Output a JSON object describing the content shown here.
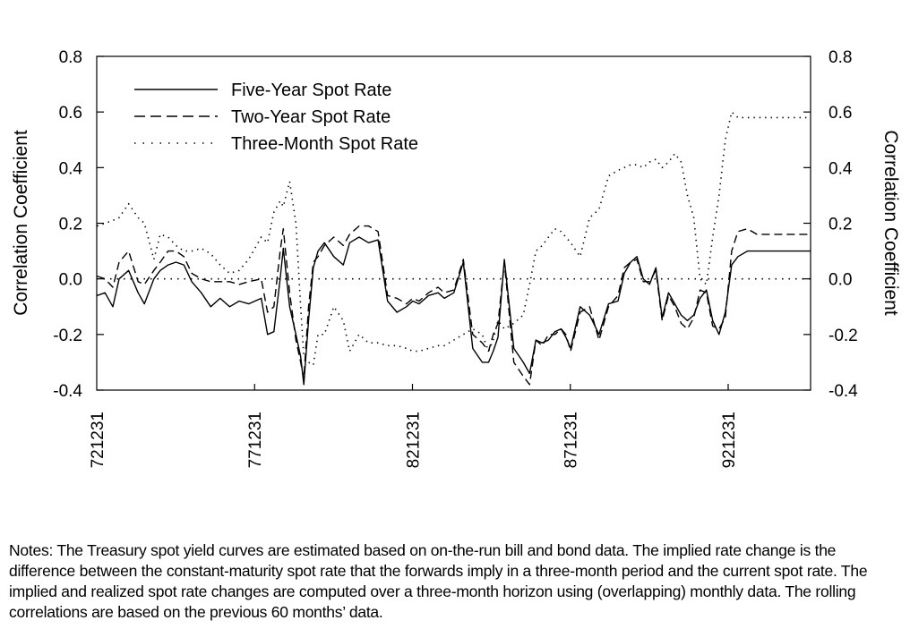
{
  "chart_data": {
    "type": "line",
    "ylabel_left": "Correlation Coefficient",
    "ylabel_right": "Correlation Coefficient",
    "ylim": [
      -0.4,
      0.8
    ],
    "yticks": [
      0.8,
      0.6,
      0.4,
      0.2,
      0.0,
      -0.2,
      -0.4
    ],
    "ytick_labels": [
      "0.8",
      "0.6",
      "0.4",
      "0.2",
      "0.0",
      "-0.2",
      "-0.4"
    ],
    "xlim": [
      1972.99,
      1995.6
    ],
    "xticks": [
      1972.99,
      1977.99,
      1982.99,
      1987.99,
      1992.99
    ],
    "xtick_labels": [
      "721231",
      "771231",
      "821231",
      "871231",
      "921231"
    ],
    "legend_position": "top-left",
    "reference_line": 0.0,
    "series": [
      {
        "name": "Five-Year Spot Rate",
        "style": "solid",
        "x": [
          1973.0,
          1973.25,
          1973.5,
          1973.7,
          1974.0,
          1974.3,
          1974.5,
          1974.8,
          1975.0,
          1975.25,
          1975.5,
          1975.75,
          1976.0,
          1976.3,
          1976.6,
          1976.9,
          1977.2,
          1977.5,
          1977.8,
          1978.2,
          1978.4,
          1978.6,
          1978.8,
          1978.9,
          1979.1,
          1979.3,
          1979.45,
          1979.55,
          1979.7,
          1979.85,
          1980.0,
          1980.2,
          1980.5,
          1980.8,
          1981.0,
          1981.3,
          1981.6,
          1981.9,
          1982.2,
          1982.5,
          1982.8,
          1983.0,
          1983.2,
          1983.5,
          1983.8,
          1984.0,
          1984.3,
          1984.6,
          1984.9,
          1985.2,
          1985.4,
          1985.55,
          1985.7,
          1985.9,
          1986.2,
          1986.5,
          1986.7,
          1986.9,
          1987.1,
          1987.3,
          1987.5,
          1987.7,
          1987.85,
          1988.0,
          1988.3,
          1988.6,
          1988.9,
          1989.2,
          1989.5,
          1989.7,
          1989.9,
          1990.1,
          1990.3,
          1990.5,
          1990.7,
          1990.9,
          1991.1,
          1991.3,
          1991.5,
          1991.7,
          1991.9,
          1992.1,
          1992.3,
          1992.5,
          1992.7,
          1992.9,
          1993.1,
          1993.3,
          1993.6,
          1993.9,
          1994.2,
          1994.4,
          1994.6,
          1994.8,
          1995.0,
          1995.2,
          1995.4,
          1995.6
        ],
        "values": [
          -0.06,
          -0.05,
          -0.1,
          0.0,
          0.03,
          -0.05,
          -0.09,
          0.0,
          0.03,
          0.05,
          0.06,
          0.05,
          -0.01,
          -0.05,
          -0.1,
          -0.07,
          -0.1,
          -0.08,
          -0.09,
          -0.07,
          -0.2,
          -0.19,
          0.0,
          0.11,
          -0.1,
          -0.2,
          -0.28,
          -0.38,
          -0.15,
          0.04,
          0.1,
          0.13,
          0.08,
          0.05,
          0.13,
          0.15,
          0.13,
          0.14,
          -0.08,
          -0.12,
          -0.1,
          -0.08,
          -0.09,
          -0.06,
          -0.05,
          -0.07,
          -0.05,
          0.06,
          -0.25,
          -0.3,
          -0.3,
          -0.26,
          -0.21,
          0.07,
          -0.25,
          -0.3,
          -0.34,
          -0.22,
          -0.23,
          -0.22,
          -0.19,
          -0.18,
          -0.21,
          -0.25,
          -0.1,
          -0.13,
          -0.2,
          -0.09,
          -0.08,
          0.02,
          0.06,
          0.08,
          0.0,
          -0.02,
          0.04,
          -0.14,
          -0.05,
          -0.09,
          -0.13,
          -0.15,
          -0.13,
          -0.07,
          -0.04,
          -0.15,
          -0.2,
          -0.12,
          0.05,
          0.08,
          0.1,
          0.1,
          0.1,
          0.1,
          0.1,
          0.1,
          0.1,
          0.1,
          0.1,
          0.1
        ]
      },
      {
        "name": "Two-Year Spot Rate",
        "style": "dashed",
        "x": [
          1973.0,
          1973.25,
          1973.5,
          1973.7,
          1974.0,
          1974.3,
          1974.5,
          1974.8,
          1975.0,
          1975.25,
          1975.5,
          1975.75,
          1976.0,
          1976.3,
          1976.6,
          1976.9,
          1977.2,
          1977.5,
          1977.8,
          1978.2,
          1978.4,
          1978.6,
          1978.8,
          1978.9,
          1979.1,
          1979.3,
          1979.45,
          1979.55,
          1979.7,
          1979.85,
          1980.0,
          1980.2,
          1980.5,
          1980.8,
          1981.0,
          1981.3,
          1981.6,
          1981.9,
          1982.2,
          1982.5,
          1982.8,
          1983.0,
          1983.2,
          1983.5,
          1983.8,
          1984.0,
          1984.3,
          1984.6,
          1984.9,
          1985.2,
          1985.4,
          1985.55,
          1985.7,
          1985.9,
          1986.2,
          1986.5,
          1986.7,
          1986.9,
          1987.1,
          1987.3,
          1987.5,
          1987.7,
          1987.85,
          1988.0,
          1988.3,
          1988.6,
          1988.9,
          1989.2,
          1989.5,
          1989.7,
          1989.9,
          1990.1,
          1990.3,
          1990.5,
          1990.7,
          1990.9,
          1991.1,
          1991.3,
          1991.5,
          1991.7,
          1991.9,
          1992.1,
          1992.3,
          1992.5,
          1992.7,
          1992.9,
          1993.1,
          1993.3,
          1993.6,
          1993.9,
          1994.2,
          1994.4,
          1994.6,
          1994.8,
          1995.0,
          1995.2,
          1995.4,
          1995.6
        ],
        "values": [
          0.01,
          0.0,
          -0.03,
          0.06,
          0.1,
          -0.01,
          -0.02,
          0.03,
          0.06,
          0.1,
          0.1,
          0.08,
          0.02,
          0.0,
          -0.01,
          -0.01,
          -0.01,
          -0.02,
          -0.01,
          0.0,
          -0.12,
          -0.1,
          0.1,
          0.18,
          -0.05,
          -0.22,
          -0.3,
          -0.36,
          -0.1,
          0.06,
          0.08,
          0.12,
          0.15,
          0.12,
          0.16,
          0.19,
          0.19,
          0.17,
          -0.06,
          -0.07,
          -0.09,
          -0.07,
          -0.08,
          -0.05,
          -0.03,
          -0.05,
          -0.04,
          0.07,
          -0.2,
          -0.23,
          -0.26,
          -0.2,
          -0.16,
          0.06,
          -0.3,
          -0.35,
          -0.38,
          -0.22,
          -0.24,
          -0.2,
          -0.2,
          -0.18,
          -0.2,
          -0.26,
          -0.12,
          -0.1,
          -0.22,
          -0.1,
          -0.06,
          0.04,
          0.06,
          0.07,
          -0.01,
          -0.01,
          0.03,
          -0.15,
          -0.06,
          -0.1,
          -0.16,
          -0.18,
          -0.14,
          -0.04,
          -0.05,
          -0.17,
          -0.18,
          -0.14,
          0.1,
          0.17,
          0.18,
          0.16,
          0.16,
          0.16,
          0.16,
          0.16,
          0.16,
          0.16,
          0.16,
          0.16
        ]
      },
      {
        "name": "Three-Month Spot Rate",
        "style": "dotted",
        "x": [
          1973.0,
          1973.25,
          1973.5,
          1973.7,
          1974.0,
          1974.3,
          1974.5,
          1974.8,
          1975.0,
          1975.25,
          1975.5,
          1975.75,
          1976.0,
          1976.3,
          1976.6,
          1976.9,
          1977.2,
          1977.5,
          1977.8,
          1978.2,
          1978.4,
          1978.6,
          1978.8,
          1978.9,
          1979.1,
          1979.3,
          1979.45,
          1979.55,
          1979.7,
          1979.85,
          1980.0,
          1980.2,
          1980.5,
          1980.8,
          1981.0,
          1981.3,
          1981.6,
          1981.9,
          1982.2,
          1982.5,
          1982.8,
          1983.0,
          1983.2,
          1983.5,
          1983.8,
          1984.0,
          1984.3,
          1984.6,
          1984.9,
          1985.2,
          1985.4,
          1985.55,
          1985.7,
          1985.9,
          1986.2,
          1986.5,
          1986.7,
          1986.9,
          1987.1,
          1987.3,
          1987.5,
          1987.7,
          1987.85,
          1988.0,
          1988.3,
          1988.6,
          1988.9,
          1989.2,
          1989.5,
          1989.7,
          1989.9,
          1990.1,
          1990.3,
          1990.5,
          1990.7,
          1990.9,
          1991.1,
          1991.3,
          1991.5,
          1991.7,
          1991.9,
          1992.1,
          1992.3,
          1992.5,
          1992.7,
          1992.9,
          1993.1,
          1993.3,
          1993.6,
          1993.9,
          1994.2,
          1994.4,
          1994.6,
          1994.8,
          1995.0,
          1995.2,
          1995.4,
          1995.6
        ],
        "values": [
          0.19,
          0.2,
          0.21,
          0.22,
          0.27,
          0.22,
          0.2,
          0.07,
          0.16,
          0.15,
          0.12,
          0.1,
          0.1,
          0.11,
          0.09,
          0.05,
          0.02,
          0.03,
          0.07,
          0.15,
          0.13,
          0.24,
          0.28,
          0.26,
          0.35,
          0.2,
          -0.1,
          -0.28,
          -0.3,
          -0.31,
          -0.2,
          -0.2,
          -0.1,
          -0.15,
          -0.26,
          -0.2,
          -0.23,
          -0.23,
          -0.24,
          -0.24,
          -0.25,
          -0.26,
          -0.26,
          -0.25,
          -0.24,
          -0.24,
          -0.22,
          -0.2,
          -0.18,
          -0.2,
          -0.26,
          -0.22,
          -0.15,
          -0.18,
          -0.16,
          -0.13,
          -0.02,
          0.1,
          0.12,
          0.15,
          0.18,
          0.17,
          0.15,
          0.13,
          0.08,
          0.22,
          0.25,
          0.37,
          0.39,
          0.4,
          0.41,
          0.41,
          0.4,
          0.42,
          0.43,
          0.4,
          0.42,
          0.45,
          0.42,
          0.3,
          0.22,
          0.0,
          -0.02,
          0.15,
          0.3,
          0.5,
          0.6,
          0.58,
          0.58,
          0.58,
          0.58,
          0.58,
          0.58,
          0.58,
          0.58,
          0.58,
          0.58,
          0.58
        ]
      }
    ]
  },
  "notes": "Notes: The Treasury spot yield curves are estimated based on on-the-run bill and bond data. The implied rate change is the difference between the constant-maturity spot rate that the forwards imply in a three-month period and the current spot rate. The implied and realized spot rate changes are computed over a three-month horizon using (overlapping) monthly data. The rolling correlations are based on the previous 60 months’ data."
}
